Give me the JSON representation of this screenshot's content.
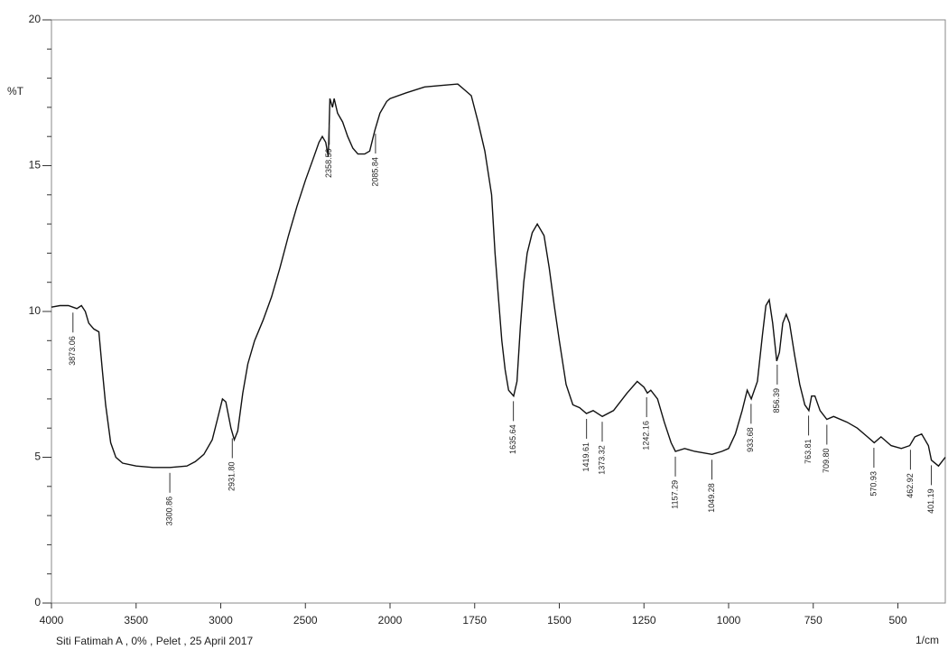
{
  "chart_data": {
    "type": "line",
    "y_label": "%T",
    "x_label": "1/cm",
    "footer": "Siti Fatimah A , 0% , Pelet , 25 April 2017",
    "x_scale": "piecewise",
    "x_break": 2000,
    "x_break_factor": 2,
    "xlim": [
      4000,
      360
    ],
    "xticks": [
      4000,
      3500,
      3000,
      2500,
      2000,
      1750,
      1500,
      1250,
      1000,
      750,
      500
    ],
    "ylim": [
      0,
      20
    ],
    "yticks": [
      0,
      5,
      10,
      15,
      20
    ],
    "yminorticks": [
      1,
      2,
      3,
      4,
      6,
      7,
      8,
      9,
      11,
      12,
      13,
      14,
      16,
      17,
      18,
      19
    ],
    "series": [
      {
        "color": "#111111",
        "x": [
          4000,
          3950,
          3900,
          3850,
          3823,
          3800,
          3780,
          3750,
          3720,
          3700,
          3680,
          3650,
          3620,
          3580,
          3500,
          3400,
          3300,
          3200,
          3150,
          3100,
          3050,
          3020,
          2990,
          2970,
          2940,
          2920,
          2900,
          2870,
          2840,
          2800,
          2750,
          2700,
          2650,
          2600,
          2550,
          2500,
          2450,
          2420,
          2400,
          2380,
          2365,
          2355,
          2340,
          2330,
          2310,
          2280,
          2250,
          2220,
          2190,
          2150,
          2120,
          2090,
          2060,
          2020,
          2000,
          1952,
          1898,
          1850,
          1800,
          1780,
          1760,
          1740,
          1720,
          1700,
          1690,
          1680,
          1670,
          1660,
          1650,
          1635,
          1625,
          1615,
          1605,
          1595,
          1580,
          1565,
          1545,
          1530,
          1515,
          1500,
          1480,
          1460,
          1440,
          1420,
          1400,
          1373,
          1340,
          1300,
          1270,
          1250,
          1240,
          1230,
          1210,
          1190,
          1170,
          1157,
          1130,
          1100,
          1049,
          1020,
          1000,
          980,
          960,
          945,
          933,
          915,
          900,
          890,
          880,
          870,
          858,
          850,
          840,
          830,
          820,
          805,
          790,
          775,
          763,
          755,
          745,
          730,
          710,
          690,
          650,
          620,
          590,
          570,
          550,
          520,
          490,
          465,
          450,
          430,
          410,
          401,
          380,
          360
        ],
        "values": [
          10.15,
          10.2,
          10.2,
          10.1,
          10.2,
          10.0,
          9.6,
          9.4,
          9.3,
          8.0,
          6.8,
          5.5,
          5.0,
          4.8,
          4.7,
          4.65,
          4.65,
          4.7,
          4.85,
          5.1,
          5.6,
          6.3,
          7.0,
          6.9,
          6.0,
          5.6,
          5.9,
          7.2,
          8.2,
          9.0,
          9.7,
          10.5,
          11.5,
          12.6,
          13.6,
          14.5,
          15.3,
          15.8,
          16.0,
          15.8,
          15.3,
          17.3,
          17.0,
          17.3,
          16.8,
          16.5,
          16.0,
          15.6,
          15.4,
          15.4,
          15.5,
          16.2,
          16.8,
          17.2,
          17.3,
          17.5,
          17.7,
          17.75,
          17.8,
          17.6,
          17.4,
          16.5,
          15.5,
          14.0,
          12.0,
          10.5,
          9.0,
          8.0,
          7.3,
          7.1,
          7.6,
          9.5,
          11.0,
          12.0,
          12.7,
          13.0,
          12.6,
          11.5,
          10.2,
          9.0,
          7.5,
          6.8,
          6.7,
          6.5,
          6.6,
          6.4,
          6.6,
          7.2,
          7.6,
          7.4,
          7.2,
          7.3,
          7.0,
          6.2,
          5.5,
          5.2,
          5.3,
          5.2,
          5.1,
          5.2,
          5.3,
          5.8,
          6.6,
          7.3,
          7.0,
          7.6,
          9.2,
          10.2,
          10.4,
          9.6,
          8.3,
          8.6,
          9.6,
          9.9,
          9.6,
          8.5,
          7.5,
          6.8,
          6.6,
          7.1,
          7.1,
          6.6,
          6.3,
          6.4,
          6.2,
          6.0,
          5.7,
          5.5,
          5.7,
          5.4,
          5.3,
          5.4,
          5.7,
          5.8,
          5.4,
          4.9,
          4.7,
          5.0
        ]
      }
    ],
    "annotations": [
      {
        "x": 3873.06,
        "label": "3873.06"
      },
      {
        "x": 3300.86,
        "label": "3300.86"
      },
      {
        "x": 2931.8,
        "label": "2931.80"
      },
      {
        "x": 2358.59,
        "label": "2358.59"
      },
      {
        "x": 2085.84,
        "label": "2085.84"
      },
      {
        "x": 1635.64,
        "label": "1635.64"
      },
      {
        "x": 1419.61,
        "label": "1419.61"
      },
      {
        "x": 1373.32,
        "label": "1373.32"
      },
      {
        "x": 1242.16,
        "label": "1242.16"
      },
      {
        "x": 1157.29,
        "label": "1157.29"
      },
      {
        "x": 1049.28,
        "label": "1049.28"
      },
      {
        "x": 933.68,
        "label": "933.68"
      },
      {
        "x": 856.39,
        "label": "856.39"
      },
      {
        "x": 763.81,
        "label": "763.81"
      },
      {
        "x": 709.8,
        "label": "709.80"
      },
      {
        "x": 570.93,
        "label": "570.93"
      },
      {
        "x": 462.92,
        "label": "462.92"
      },
      {
        "x": 401.19,
        "label": "401.19"
      }
    ]
  }
}
